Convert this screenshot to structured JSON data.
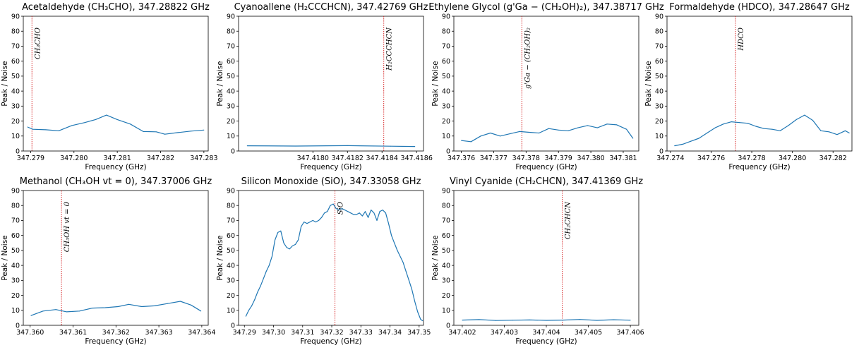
{
  "chart_data": [
    {
      "type": "line",
      "title": "Acetaldehyde (CH₃CHO), 347.28822 GHz",
      "xlabel": "Frequency (GHz)",
      "ylabel": "Peak / Noise",
      "xlim": [
        347.27883,
        347.2831
      ],
      "ylim": [
        0,
        90
      ],
      "xticks": [
        347.279,
        347.28,
        347.281,
        347.282,
        347.283
      ],
      "xtick_labels": [
        "347.279",
        "347.280",
        "347.281",
        "347.282",
        "347.283"
      ],
      "yticks": [
        0,
        10,
        20,
        30,
        40,
        50,
        60,
        70,
        80,
        90
      ],
      "line_label": "CH₃CHO",
      "line_x": 347.27903,
      "color": "#1f77b4",
      "line_color": "#d62728",
      "x": [
        347.27893,
        347.27905,
        347.27935,
        347.27965,
        347.27995,
        347.28025,
        347.2805,
        347.28075,
        347.281,
        347.2813,
        347.2816,
        347.2819,
        347.2821,
        347.2824,
        347.2827,
        347.283
      ],
      "y": [
        16.0,
        14.5,
        14.2,
        13.5,
        17.0,
        19.0,
        21.0,
        24.0,
        21.0,
        18.0,
        13.0,
        12.8,
        11.2,
        12.3,
        13.3,
        14.0
      ]
    },
    {
      "type": "line",
      "title": "Cyanoallene (H₂CCCHCN), 347.42769 GHz",
      "xlabel": "Frequency (GHz)",
      "ylabel": "Peak / Noise",
      "xlim": [
        347.41757,
        347.41864
      ],
      "ylim": [
        0,
        90
      ],
      "xticks": [
        347.418,
        347.4182,
        347.4184,
        347.4186
      ],
      "xtick_labels": [
        "347.4180",
        "347.4182",
        "347.4184",
        "347.4186"
      ],
      "yticks": [
        0,
        10,
        20,
        30,
        40,
        50,
        60,
        70,
        80,
        90
      ],
      "line_label": "H₂CCCHCN",
      "line_x": 347.41841,
      "color": "#1f77b4",
      "line_color": "#d62728",
      "x": [
        347.41762,
        347.4179,
        347.4182,
        347.41845,
        347.41859
      ],
      "y": [
        3.5,
        3.3,
        3.6,
        3.2,
        3.0
      ]
    },
    {
      "type": "line",
      "title": "Ethylene Glycol (g'Ga − (CH₂OH)₂), 347.38717 GHz",
      "xlabel": "Frequency (GHz)",
      "ylabel": "Peak / Noise",
      "xlim": [
        347.37577,
        347.38148
      ],
      "ylim": [
        0,
        90
      ],
      "xticks": [
        347.376,
        347.377,
        347.378,
        347.379,
        347.38,
        347.381
      ],
      "xtick_labels": [
        "347.376",
        "347.377",
        "347.378",
        "347.379",
        "347.380",
        "347.381"
      ],
      "yticks": [
        0,
        10,
        20,
        30,
        40,
        50,
        60,
        70,
        80,
        90
      ],
      "line_label": "g'Ga − (CH₂OH)₂",
      "line_x": 347.37787,
      "color": "#1f77b4",
      "line_color": "#d62728",
      "x": [
        347.376,
        347.3763,
        347.3766,
        347.3769,
        347.3772,
        347.3775,
        347.3778,
        347.3781,
        347.3784,
        347.3787,
        347.379,
        347.3793,
        347.3796,
        347.3799,
        347.3802,
        347.3805,
        347.3808,
        347.3811,
        347.3813
      ],
      "y": [
        7.0,
        6.2,
        10.0,
        12.0,
        10.0,
        11.5,
        13.0,
        12.5,
        12.0,
        15.0,
        14.0,
        13.5,
        15.5,
        17.0,
        15.5,
        18.0,
        17.5,
        14.5,
        8.5
      ]
    },
    {
      "type": "line",
      "title": "Formaldehyde (HDCO), 347.28647 GHz",
      "xlabel": "Frequency (GHz)",
      "ylabel": "Peak / Noise",
      "xlim": [
        347.27383,
        347.28293
      ],
      "ylim": [
        0,
        90
      ],
      "xticks": [
        347.274,
        347.276,
        347.278,
        347.28,
        347.282
      ],
      "xtick_labels": [
        "347.274",
        "347.276",
        "347.278",
        "347.280",
        "347.282"
      ],
      "yticks": [
        0,
        10,
        20,
        30,
        40,
        50,
        60,
        70,
        80,
        90
      ],
      "line_label": "HDCO",
      "line_x": 347.2772,
      "color": "#1f77b4",
      "line_color": "#d62728",
      "x": [
        347.2742,
        347.2746,
        347.275,
        347.2754,
        347.2758,
        347.2762,
        347.2766,
        347.277,
        347.2774,
        347.2778,
        347.2782,
        347.2786,
        347.279,
        347.2794,
        347.2798,
        347.2802,
        347.2806,
        347.281,
        347.2814,
        347.2818,
        347.2822,
        347.2826,
        347.2828
      ],
      "y": [
        3.5,
        4.5,
        6.5,
        8.5,
        12.0,
        15.5,
        18.0,
        19.5,
        19.0,
        18.5,
        16.5,
        15.0,
        14.5,
        13.5,
        17.0,
        21.0,
        24.0,
        20.5,
        13.5,
        12.8,
        11.0,
        13.5,
        12.0
      ]
    },
    {
      "type": "line",
      "title": "Methanol (CH₃OH vt = 0), 347.37006 GHz",
      "xlabel": "Frequency (GHz)",
      "ylabel": "Peak / Noise",
      "xlim": [
        347.35984,
        347.36415
      ],
      "ylim": [
        0,
        90
      ],
      "xticks": [
        347.36,
        347.361,
        347.362,
        347.363,
        347.364
      ],
      "xtick_labels": [
        "347.360",
        "347.361",
        "347.362",
        "347.363",
        "347.364"
      ],
      "yticks": [
        0,
        10,
        20,
        30,
        40,
        50,
        60,
        70,
        80,
        90
      ],
      "line_label": "CH₃OH vt = 0",
      "line_x": 347.36073,
      "color": "#1f77b4",
      "line_color": "#d62728",
      "x": [
        347.36002,
        347.3603,
        347.3606,
        347.36085,
        347.36115,
        347.36145,
        347.36175,
        347.36205,
        347.3623,
        347.3626,
        347.3629,
        347.3632,
        347.3635,
        347.36375,
        347.36398
      ],
      "y": [
        6.5,
        9.5,
        10.5,
        9.0,
        9.5,
        11.5,
        11.8,
        12.5,
        14.0,
        12.5,
        13.0,
        14.5,
        16.0,
        13.5,
        9.5
      ]
    },
    {
      "type": "line",
      "title": "Silicon Monoxide (SiO), 347.33058 GHz",
      "xlabel": "Frequency (GHz)",
      "ylabel": "Peak / Noise",
      "xlim": [
        347.288,
        347.3515
      ],
      "ylim": [
        0,
        90
      ],
      "xticks": [
        347.29,
        347.3,
        347.31,
        347.32,
        347.33,
        347.34,
        347.35
      ],
      "xtick_labels": [
        "347.29",
        "347.30",
        "347.31",
        "347.32",
        "347.33",
        "347.34",
        "347.35"
      ],
      "yticks": [
        0,
        10,
        20,
        30,
        40,
        50,
        60,
        70,
        80,
        90
      ],
      "line_label": "SiO",
      "line_x": 347.3211,
      "color": "#1f77b4",
      "line_color": "#d62728",
      "x": [
        347.2905,
        347.2915,
        347.2925,
        347.2935,
        347.2945,
        347.2955,
        347.2965,
        347.2975,
        347.2985,
        347.2995,
        347.3005,
        347.3015,
        347.3025,
        347.3035,
        347.3045,
        347.3055,
        347.3065,
        347.3075,
        347.3085,
        347.3095,
        347.3105,
        347.3115,
        347.3125,
        347.3135,
        347.3145,
        347.3155,
        347.3165,
        347.3175,
        347.3185,
        347.3195,
        347.3205,
        347.3215,
        347.3225,
        347.3235,
        347.3245,
        347.3255,
        347.3265,
        347.3275,
        347.3285,
        347.3295,
        347.3305,
        347.3315,
        347.3325,
        347.3335,
        347.3345,
        347.3355,
        347.3365,
        347.3375,
        347.3385,
        347.3395,
        347.3405,
        347.3415,
        347.3425,
        347.3435,
        347.3445,
        347.3455,
        347.3465,
        347.3475,
        347.3485,
        347.3495,
        347.3505,
        347.3512
      ],
      "y": [
        6,
        10,
        13,
        17,
        22,
        26,
        31,
        36,
        40,
        46,
        57,
        62,
        63,
        55,
        52,
        51,
        53,
        54,
        57,
        66,
        69,
        68,
        69,
        70,
        69,
        70,
        72,
        75,
        76,
        80,
        81,
        78,
        77,
        78,
        77,
        76,
        75,
        74,
        74,
        75,
        73,
        76,
        72,
        77,
        75,
        70,
        76,
        77,
        75,
        68,
        60,
        55,
        50,
        46,
        42,
        36,
        30,
        24,
        16,
        9,
        4,
        3
      ]
    },
    {
      "type": "line",
      "title": "Vinyl Cyanide (CH₂CHCN), 347.41369 GHz",
      "xlabel": "Frequency (GHz)",
      "ylabel": "Peak / Noise",
      "xlim": [
        347.4018,
        347.4062
      ],
      "ylim": [
        0,
        90
      ],
      "xticks": [
        347.402,
        347.403,
        347.404,
        347.405,
        347.406
      ],
      "xtick_labels": [
        "347.402",
        "347.403",
        "347.404",
        "347.405",
        "347.406"
      ],
      "yticks": [
        0,
        10,
        20,
        30,
        40,
        50,
        60,
        70,
        80,
        90
      ],
      "line_label": "CH₂CHCN",
      "line_x": 347.40438,
      "color": "#1f77b4",
      "line_color": "#d62728",
      "x": [
        347.402,
        347.4024,
        347.4028,
        347.4032,
        347.4036,
        347.404,
        347.4044,
        347.4048,
        347.4052,
        347.4056,
        347.406
      ],
      "y": [
        3.5,
        3.8,
        3.2,
        3.4,
        3.6,
        3.3,
        3.5,
        3.9,
        3.3,
        3.7,
        3.4
      ]
    }
  ]
}
